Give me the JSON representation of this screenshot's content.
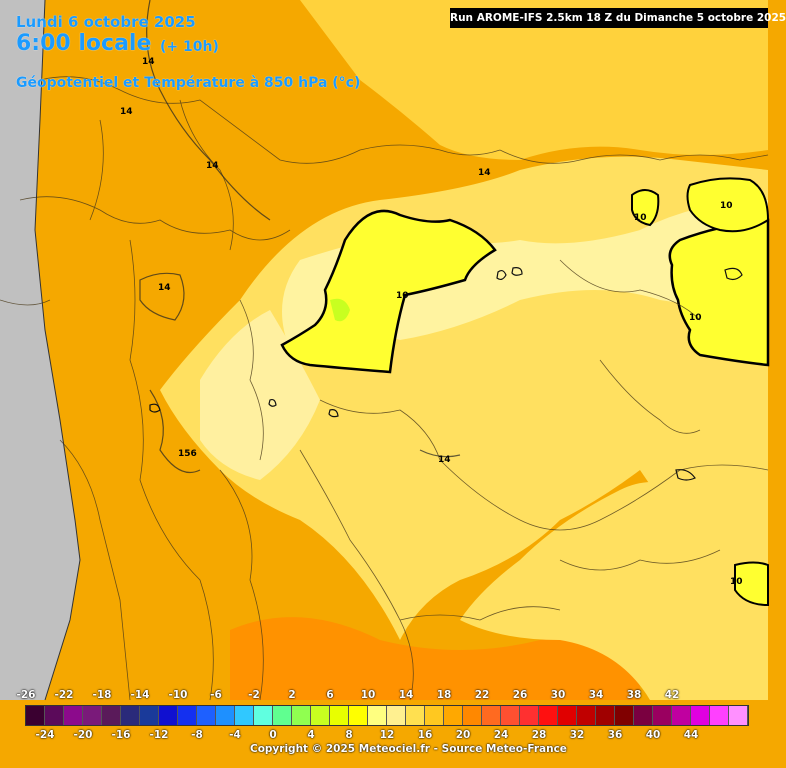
{
  "header": {
    "date": "Lundi 6 octobre 2025",
    "local_time": "6:00 locale",
    "lead_time": "(+ 10h)",
    "parameter": "Géopotentiel et Température à 850 hPa (°c)"
  },
  "run_banner": "Run AROME-IFS 2.5km 18 Z du Dimanche 5 octobre 2025",
  "map": {
    "ocean_color": "#c0c0c0",
    "isohypse_labels": [
      "14",
      "14",
      "14",
      "14",
      "14",
      "14",
      "10",
      "10",
      "10",
      "10",
      "10",
      "14",
      "156"
    ]
  },
  "colorbar": {
    "labels_top": [
      "-26",
      "-22",
      "-18",
      "-14",
      "-10",
      "-6",
      "-2",
      "2",
      "6",
      "10",
      "14",
      "18",
      "22",
      "26",
      "30",
      "34",
      "38",
      "42"
    ],
    "labels_bottom": [
      "-24",
      "-20",
      "-16",
      "-12",
      "-8",
      "-4",
      "0",
      "4",
      "8",
      "12",
      "16",
      "20",
      "24",
      "28",
      "32",
      "36",
      "40",
      "44"
    ],
    "colors": [
      "#3a0030",
      "#5b0a5a",
      "#8c0a8c",
      "#7a1a7a",
      "#5a1a5a",
      "#2a2a7a",
      "#1a3a9a",
      "#1010d0",
      "#1430f0",
      "#1e60ff",
      "#1e90ff",
      "#30c8ff",
      "#60ffe0",
      "#60ff90",
      "#90ff50",
      "#c8ff20",
      "#e8ff00",
      "#ffff00",
      "#ffff80",
      "#fff090",
      "#ffe050",
      "#ffc820",
      "#ffa800",
      "#ff8800",
      "#ff6a20",
      "#ff5030",
      "#ff3030",
      "#ff1010",
      "#e00000",
      "#c00000",
      "#a00000",
      "#800000",
      "#7a0040",
      "#9a0060",
      "#c000a0",
      "#e000e0",
      "#ff40ff",
      "#ff90ff"
    ]
  },
  "copyright": "Copyright © 2025 Meteociel.fr - Source Meteo-France"
}
